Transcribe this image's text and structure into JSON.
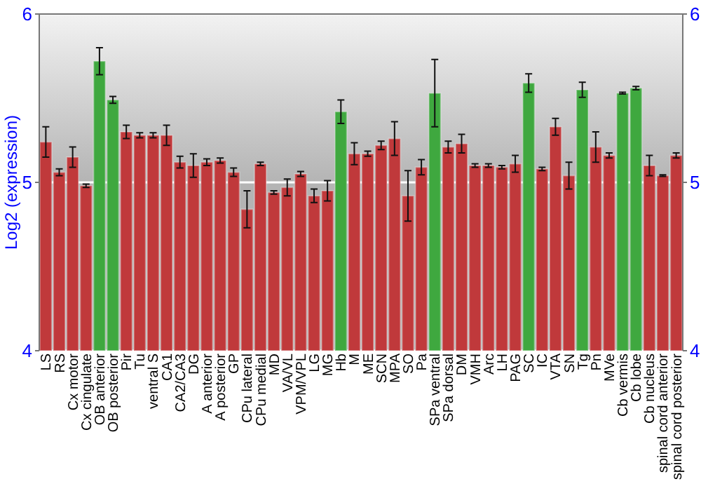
{
  "chart_data": {
    "type": "bar",
    "ylabel": "Log2 (expression)",
    "categories": [
      "LS",
      "RS",
      "Cx motor",
      "Cx cingulate",
      "OB anterior",
      "OB posterior",
      "Pir",
      "Tu",
      "ventral S",
      "CA1",
      "CA2/CA3",
      "DG",
      "A anterior",
      "A posterior",
      "GP",
      "CPu lateral",
      "CPu medial",
      "MD",
      "VA/VL",
      "VPM/VPL",
      "LG",
      "MG",
      "Hb",
      "M",
      "ME",
      "SCN",
      "MPA",
      "SO",
      "Pa",
      "SPa ventral",
      "SPa dorsal",
      "DM",
      "VMH",
      "Arc",
      "LH",
      "PAG",
      "SC",
      "IC",
      "VTA",
      "SN",
      "Tg",
      "Pn",
      "MVe",
      "Cb vermis",
      "Cb lobe",
      "Cb nucleus",
      "spinal cord anterior",
      "spinal cord posterior"
    ],
    "values": [
      5.24,
      5.06,
      5.15,
      4.98,
      5.72,
      5.49,
      5.3,
      5.28,
      5.28,
      5.28,
      5.12,
      5.1,
      5.12,
      5.13,
      5.06,
      4.84,
      5.11,
      4.94,
      4.97,
      5.05,
      4.92,
      4.95,
      5.42,
      5.17,
      5.17,
      5.22,
      5.26,
      4.92,
      5.09,
      5.53,
      5.21,
      5.23,
      5.1,
      5.1,
      5.09,
      5.11,
      5.59,
      5.08,
      5.33,
      5.04,
      5.55,
      5.21,
      5.16,
      5.53,
      5.56,
      5.1,
      5.04,
      5.16
    ],
    "errors": [
      0.09,
      0.02,
      0.06,
      0.01,
      0.08,
      0.02,
      0.04,
      0.015,
      0.015,
      0.06,
      0.035,
      0.07,
      0.02,
      0.015,
      0.025,
      0.11,
      0.01,
      0.01,
      0.05,
      0.015,
      0.04,
      0.06,
      0.07,
      0.065,
      0.015,
      0.025,
      0.1,
      0.15,
      0.045,
      0.2,
      0.035,
      0.055,
      0.01,
      0.01,
      0.01,
      0.05,
      0.055,
      0.01,
      0.05,
      0.08,
      0.045,
      0.09,
      0.015,
      0.005,
      0.01,
      0.06,
      0.005,
      0.015
    ],
    "colors": [
      "#c0393b",
      "#c0393b",
      "#c0393b",
      "#c0393b",
      "#3fa83f",
      "#3fa83f",
      "#c0393b",
      "#c0393b",
      "#c0393b",
      "#c0393b",
      "#c0393b",
      "#c0393b",
      "#c0393b",
      "#c0393b",
      "#c0393b",
      "#c0393b",
      "#c0393b",
      "#c0393b",
      "#c0393b",
      "#c0393b",
      "#c0393b",
      "#c0393b",
      "#3fa83f",
      "#c0393b",
      "#c0393b",
      "#c0393b",
      "#c0393b",
      "#c0393b",
      "#c0393b",
      "#3fa83f",
      "#c0393b",
      "#c0393b",
      "#c0393b",
      "#c0393b",
      "#c0393b",
      "#c0393b",
      "#3fa83f",
      "#c0393b",
      "#c0393b",
      "#c0393b",
      "#3fa83f",
      "#c0393b",
      "#c0393b",
      "#3fa83f",
      "#3fa83f",
      "#c0393b",
      "#c0393b",
      "#c0393b"
    ],
    "ylim": [
      4,
      6
    ],
    "yticks": [
      4,
      5,
      6
    ],
    "y2lim": [
      4,
      6
    ],
    "y2ticks": [
      4,
      5,
      6
    ],
    "grid": "y"
  }
}
